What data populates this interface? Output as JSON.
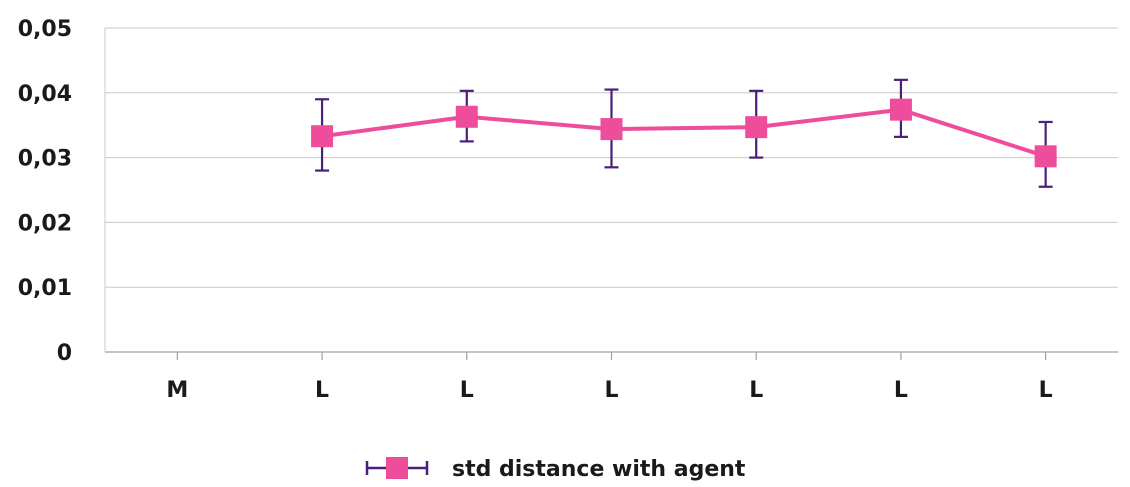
{
  "chart_data": {
    "type": "line",
    "categories": [
      "M",
      "L",
      "L",
      "L",
      "L",
      "L",
      "L"
    ],
    "series": [
      {
        "name": "std distance with agent",
        "values": [
          null,
          0.0333,
          0.0363,
          0.0344,
          0.0347,
          0.0374,
          0.0302
        ],
        "error_low": [
          null,
          0.028,
          0.0325,
          0.0285,
          0.03,
          0.0332,
          0.0255
        ],
        "error_high": [
          null,
          0.039,
          0.0403,
          0.0405,
          0.0403,
          0.042,
          0.0355
        ]
      }
    ],
    "y_ticks": [
      "0",
      "0,01",
      "0,02",
      "0,03",
      "0,04",
      "0,05"
    ],
    "ylim": [
      0,
      0.05
    ],
    "grid": true,
    "legend_position": "bottom",
    "colors": {
      "line": "#ee4d9b",
      "marker": "#ee4d9b",
      "error_bar": "#4b1e7a",
      "grid": "#c8c8c8",
      "axis": "#a0a0a0"
    }
  }
}
